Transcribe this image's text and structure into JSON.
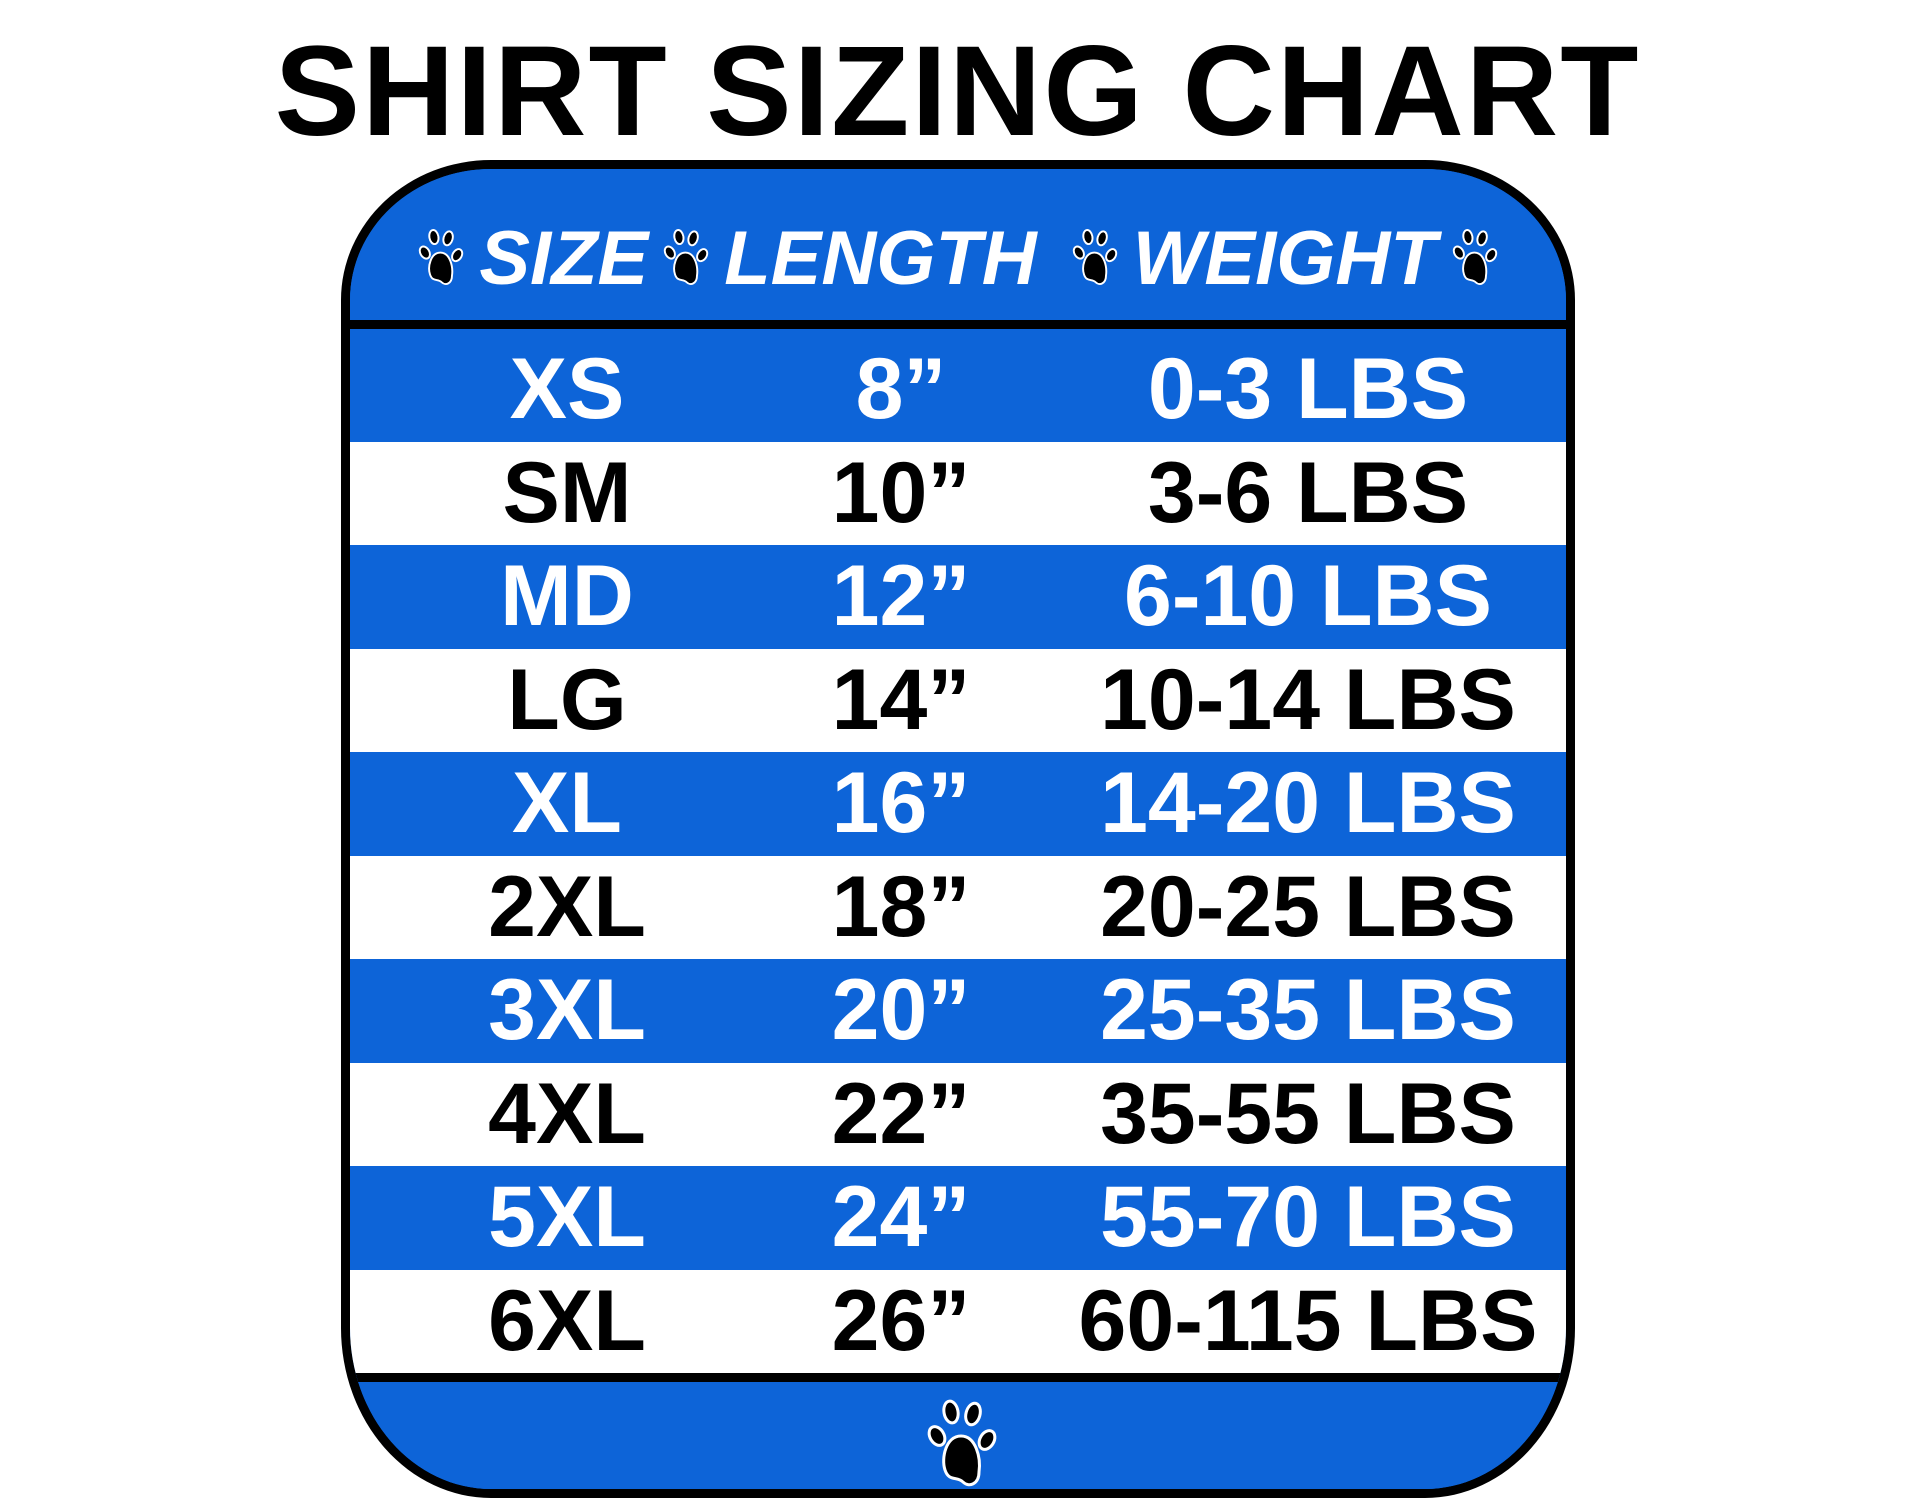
{
  "title": "SHIRT SIZING CHART",
  "colors": {
    "blue": "#0d64d8",
    "border": "#000000",
    "white": "#ffffff"
  },
  "header": {
    "columns": [
      "SIZE",
      "LENGTH",
      "WEIGHT"
    ],
    "icon": "paw-print-icon"
  },
  "rows": [
    {
      "size": "XS",
      "length": "8”",
      "weight": "0-3 LBS"
    },
    {
      "size": "SM",
      "length": "10”",
      "weight": "3-6 LBS"
    },
    {
      "size": "MD",
      "length": "12”",
      "weight": "6-10 LBS"
    },
    {
      "size": "LG",
      "length": "14”",
      "weight": "10-14 LBS"
    },
    {
      "size": "XL",
      "length": "16”",
      "weight": "14-20 LBS"
    },
    {
      "size": "2XL",
      "length": "18”",
      "weight": "20-25 LBS"
    },
    {
      "size": "3XL",
      "length": "20”",
      "weight": "25-35 LBS"
    },
    {
      "size": "4XL",
      "length": "22”",
      "weight": "35-55 LBS"
    },
    {
      "size": "5XL",
      "length": "24”",
      "weight": "55-70 LBS"
    },
    {
      "size": "6XL",
      "length": "26”",
      "weight": "60-115 LBS"
    }
  ]
}
